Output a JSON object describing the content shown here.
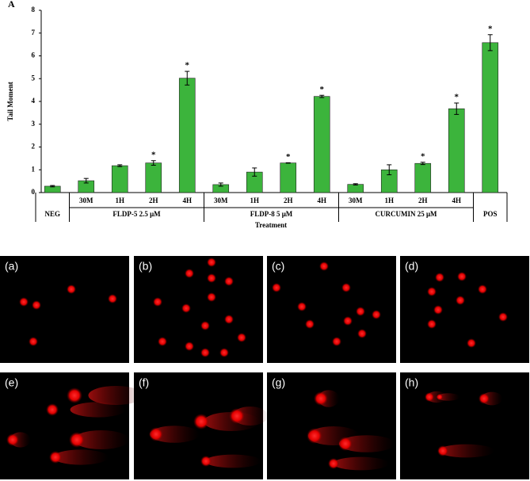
{
  "chart_data": {
    "type": "bar",
    "panel_label": "A",
    "y_label": "Tail Moment",
    "x_label": "Treatment",
    "categories": [
      null,
      "30M",
      "1H",
      "2H",
      "4H",
      "30M",
      "1H",
      "2H",
      "4H",
      "30M",
      "1H",
      "2H",
      "4H",
      null
    ],
    "groups": [
      {
        "label": "NEG",
        "count": 1
      },
      {
        "label": "FLDP-5 2.5 μM",
        "count": 4
      },
      {
        "label": "FLDP-8 5 μM",
        "count": 4
      },
      {
        "label": "CURCUMIN 25 μM",
        "count": 4
      },
      {
        "label": "POS",
        "count": 1
      }
    ],
    "values": [
      0.28,
      0.52,
      1.18,
      1.3,
      5.02,
      0.35,
      0.9,
      1.3,
      4.22,
      0.36,
      1.0,
      1.28,
      3.68,
      6.58
    ],
    "errors": [
      0.03,
      0.1,
      0.04,
      0.1,
      0.3,
      0.07,
      0.18,
      0.01,
      0.05,
      0.03,
      0.22,
      0.05,
      0.25,
      0.35
    ],
    "annotations": [
      {
        "index": 3,
        "text": "*"
      },
      {
        "index": 4,
        "text": "*"
      },
      {
        "index": 7,
        "text": "*"
      },
      {
        "index": 8,
        "text": "*"
      },
      {
        "index": 11,
        "text": "*"
      },
      {
        "index": 12,
        "text": "*"
      },
      {
        "index": 13,
        "text": "*"
      }
    ],
    "color": "#3cb43c",
    "ylim": [
      0,
      8
    ],
    "yticks": [
      0,
      1,
      2,
      3,
      4,
      5,
      6,
      7,
      8
    ]
  },
  "images": {
    "labels": [
      "(a)",
      "(b)",
      "(c)",
      "(d)",
      "(e)",
      "(f)",
      "(g)",
      "(h)"
    ]
  }
}
